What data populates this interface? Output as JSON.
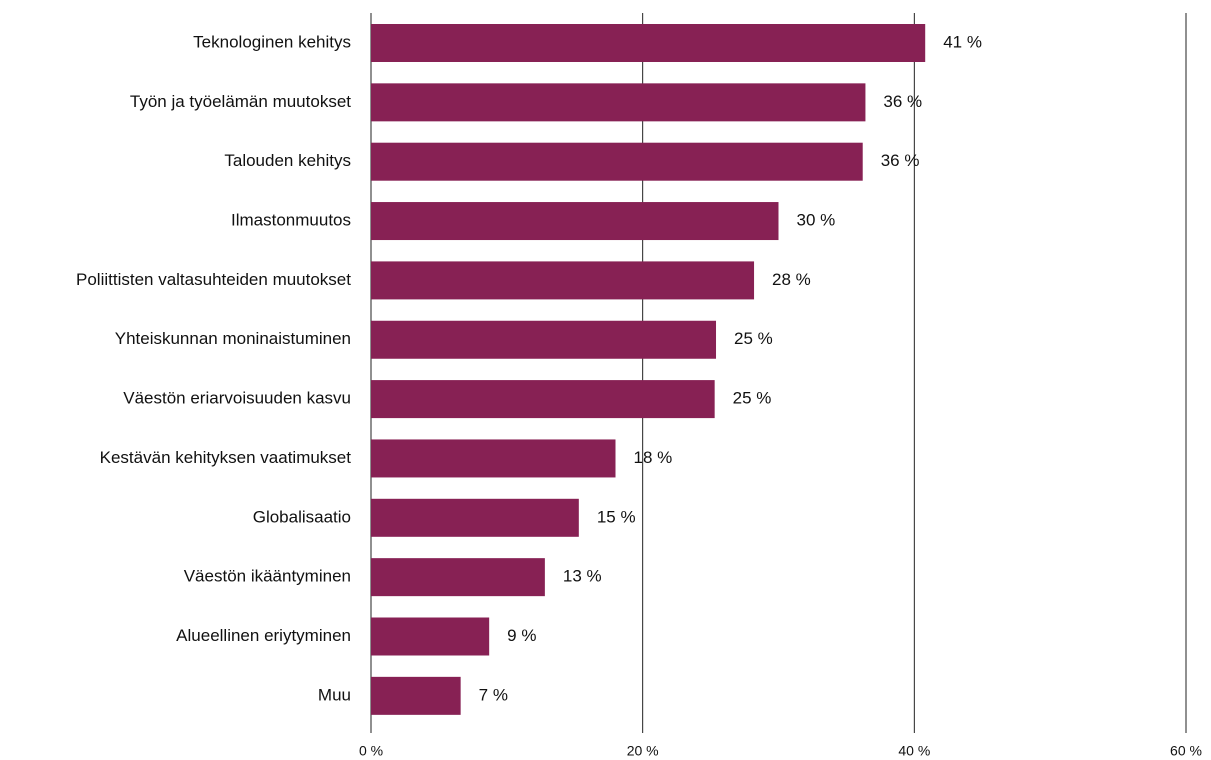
{
  "chart_data": {
    "type": "hbar",
    "categories": [
      "Teknologinen kehitys",
      "Työn ja työelämän muutokset",
      "Talouden kehitys",
      "Ilmastonmuutos",
      "Poliittisten valtasuhteiden muutokset",
      "Yhteiskunnan moninaistuminen",
      "Väestön eriarvoisuuden kasvu",
      "Kestävän kehityksen vaatimukset",
      "Globalisaatio",
      "Väestön ikääntyminen",
      "Alueellinen eriytyminen",
      "Muu"
    ],
    "values": [
      40.8,
      36.4,
      36.2,
      30,
      28.2,
      25.4,
      25.3,
      18,
      15.3,
      12.8,
      8.7,
      6.6
    ],
    "value_labels": [
      "41 %",
      "36 %",
      "36 %",
      "30 %",
      "28 %",
      "25 %",
      "25 %",
      "18 %",
      "15 %",
      "13 %",
      "9 %",
      "7 %"
    ],
    "color": "#872154",
    "xlim": [
      0,
      60
    ],
    "xticks": [
      {
        "value": 0,
        "label": "0 %"
      },
      {
        "value": 20,
        "label": "20 %"
      },
      {
        "value": 40,
        "label": "40 %"
      },
      {
        "value": 60,
        "label": "60 %"
      }
    ],
    "grid": true
  }
}
